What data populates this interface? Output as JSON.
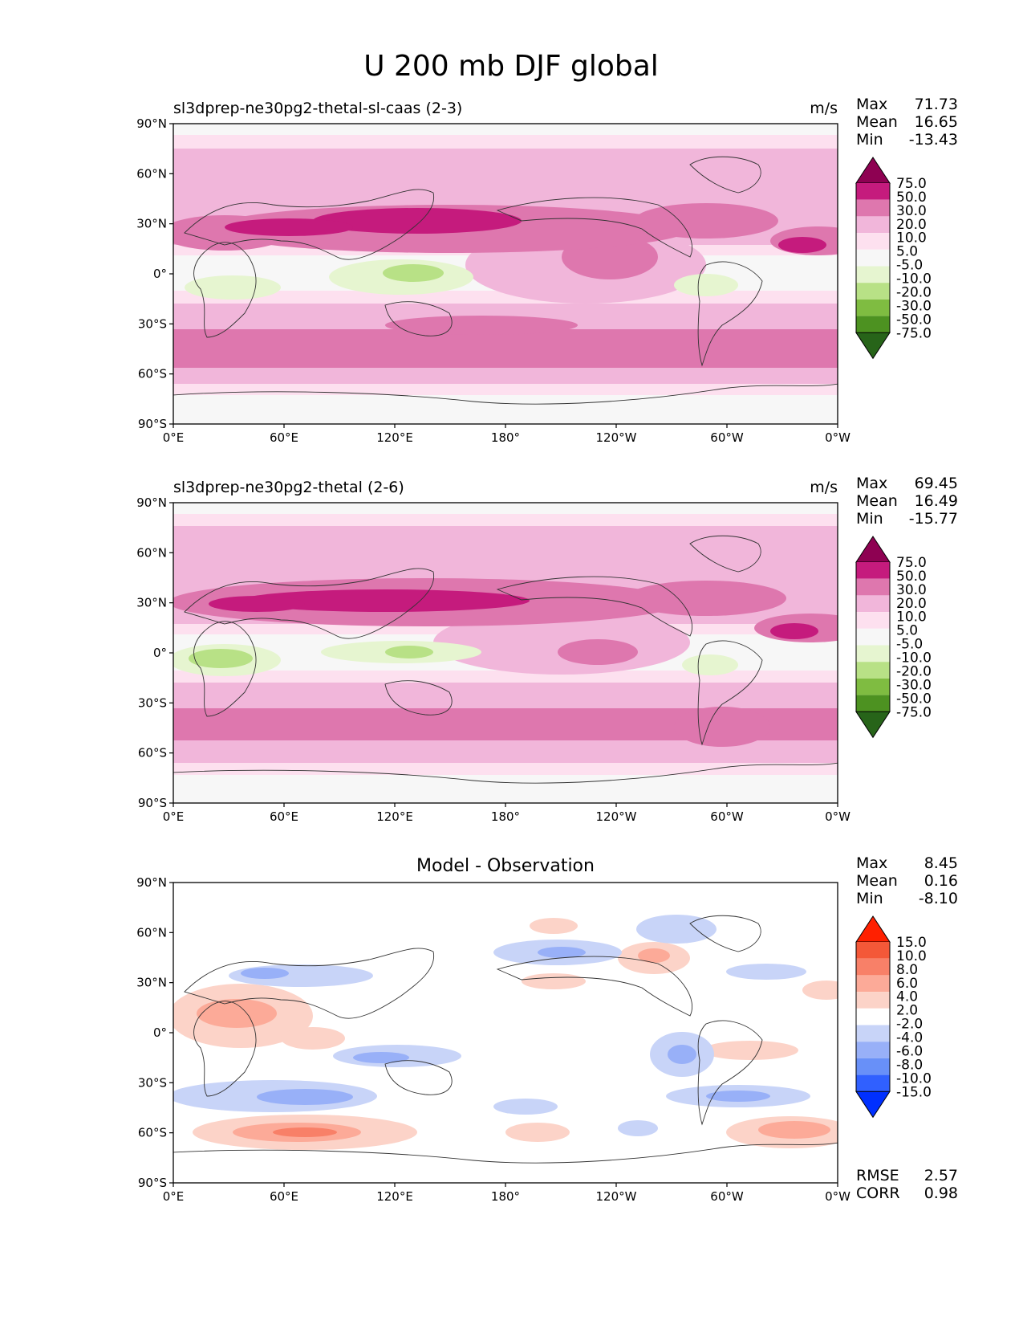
{
  "title": "U 200 mb DJF global",
  "x_ticks": [
    "0°E",
    "60°E",
    "120°E",
    "180°",
    "120°W",
    "60°W",
    "0°W"
  ],
  "y_ticks": [
    "90°N",
    "60°N",
    "30°N",
    "0°",
    "30°S",
    "60°S",
    "90°S"
  ],
  "colors": {
    "field_scale": [
      "#276419",
      "#4d9221",
      "#7fbc41",
      "#b8e186",
      "#e6f5d0",
      "#f7f7f7",
      "#fde0ef",
      "#f1b6da",
      "#de77ae",
      "#c51b7d",
      "#8e0152"
    ],
    "diff_scale": [
      "#0030ff",
      "#3060ff",
      "#6890f8",
      "#98b0f8",
      "#c8d4f8",
      "#ffffff",
      "#fcd3c8",
      "#fcaa98",
      "#f88068",
      "#f45838",
      "#ff2000"
    ],
    "coastline": "#333333"
  },
  "chart_data": [
    {
      "type": "heatmap",
      "title": "sl3dprep-ne30pg2-thetal-sl-caas (2-3)",
      "units": "m/s",
      "xlim": [
        0,
        360
      ],
      "ylim": [
        -90,
        90
      ],
      "stats": {
        "max_label": "Max",
        "max": "71.73",
        "mean_label": "Mean",
        "mean": "16.65",
        "min_label": "Min",
        "min": "-13.43"
      },
      "levels": [
        "75.0",
        "50.0",
        "30.0",
        "20.0",
        "10.0",
        "5.0",
        "-5.0",
        "-10.0",
        "-20.0",
        "-30.0",
        "-50.0",
        "-75.0"
      ]
    },
    {
      "type": "heatmap",
      "title": "sl3dprep-ne30pg2-thetal (2-6)",
      "units": "m/s",
      "xlim": [
        0,
        360
      ],
      "ylim": [
        -90,
        90
      ],
      "stats": {
        "max_label": "Max",
        "max": "69.45",
        "mean_label": "Mean",
        "mean": "16.49",
        "min_label": "Min",
        "min": "-15.77"
      },
      "levels": [
        "75.0",
        "50.0",
        "30.0",
        "20.0",
        "10.0",
        "5.0",
        "-5.0",
        "-10.0",
        "-20.0",
        "-30.0",
        "-50.0",
        "-75.0"
      ]
    },
    {
      "type": "heatmap",
      "title": "Model - Observation",
      "units": "",
      "xlim": [
        0,
        360
      ],
      "ylim": [
        -90,
        90
      ],
      "stats": {
        "max_label": "Max",
        "max": "8.45",
        "mean_label": "Mean",
        "mean": "0.16",
        "min_label": "Min",
        "min": "-8.10"
      },
      "levels": [
        "15.0",
        "10.0",
        "8.0",
        "6.0",
        "4.0",
        "2.0",
        "-2.0",
        "-4.0",
        "-6.0",
        "-8.0",
        "-10.0",
        "-15.0"
      ],
      "extra_stats": {
        "rmse_label": "RMSE",
        "rmse": "2.57",
        "corr_label": "CORR",
        "corr": "0.98"
      }
    }
  ]
}
